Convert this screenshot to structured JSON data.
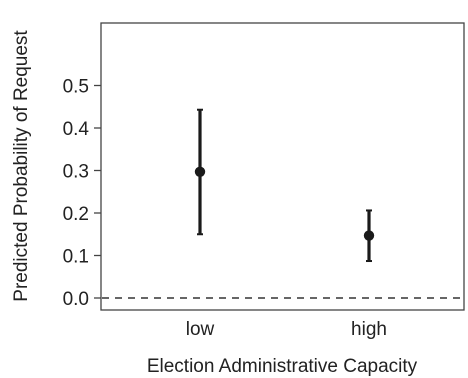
{
  "chart_data": {
    "type": "scatter",
    "title": "",
    "xlabel": "Election Administrative Capacity",
    "ylabel": "Predicted Probability of Request",
    "categories": [
      "low",
      "high"
    ],
    "series": [
      {
        "values": [
          0.297,
          0.147
        ],
        "lower": [
          0.15,
          0.087
        ],
        "upper": [
          0.443,
          0.206
        ]
      }
    ],
    "ylim": [
      0,
      0.52
    ],
    "yticks": [
      0.0,
      0.1,
      0.2,
      0.3,
      0.4,
      0.5
    ],
    "ytick_labels": [
      "0.0",
      "0.1",
      "0.2",
      "0.3",
      "0.4",
      "0.5"
    ],
    "reference_line": 0.0,
    "grid": false,
    "colors": {
      "marks": "#1a1a1a",
      "axis": "#444444",
      "reference": "#333333"
    }
  }
}
